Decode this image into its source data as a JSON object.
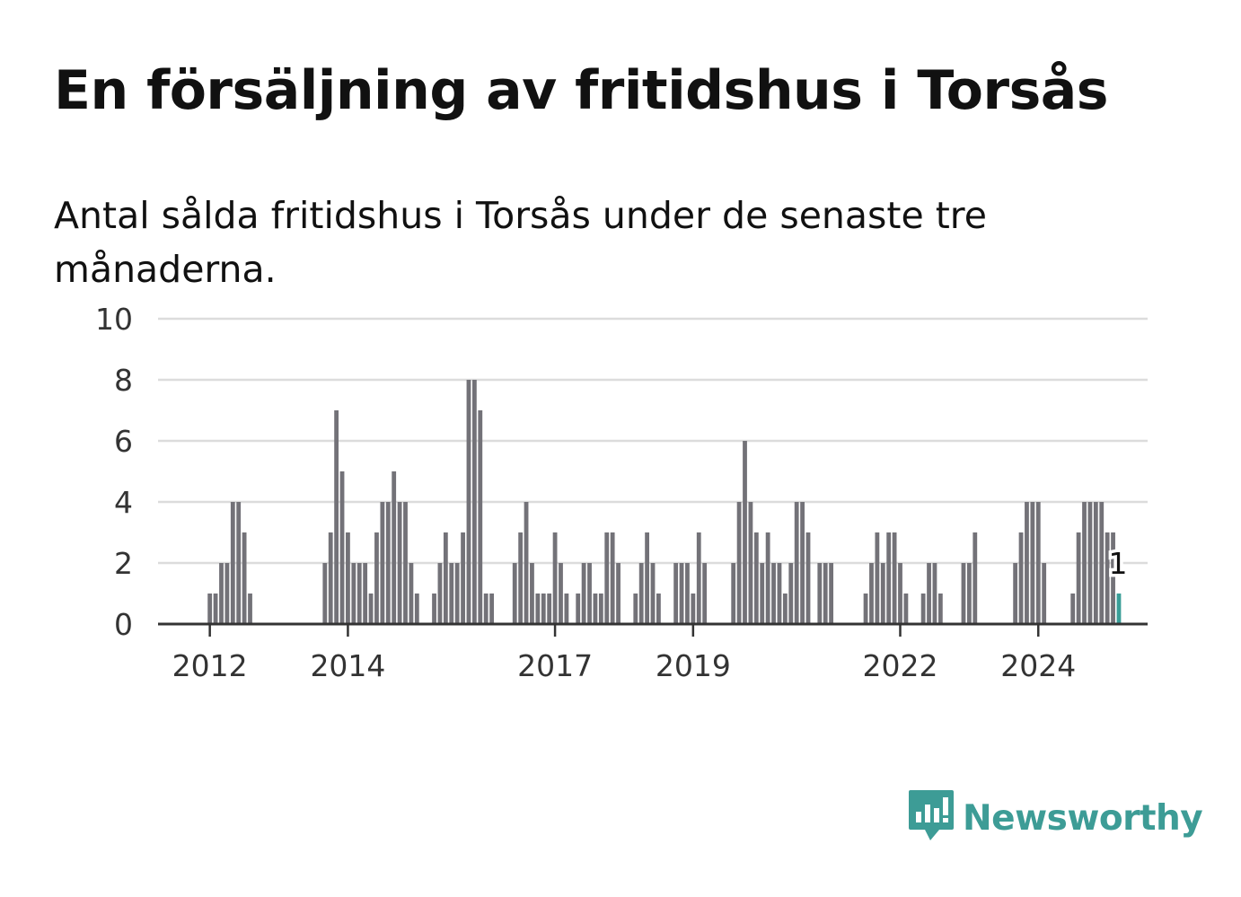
{
  "title": "En försäljning av fritidshus i Torsås",
  "subtitle": "Antal sålda fritidshus i Torsås under de senaste tre månaderna.",
  "brand": {
    "name": "Newsworthy",
    "color": "#3d9c96"
  },
  "colors": {
    "bar": "#737278",
    "highlight": "#3a9e98",
    "grid": "#dcdcdc",
    "axis": "#333333"
  },
  "chart_data": {
    "type": "bar",
    "title": "",
    "xlabel": "",
    "ylabel": "",
    "ylim": [
      0,
      10
    ],
    "yticks": [
      0,
      2,
      4,
      6,
      8,
      10
    ],
    "x_range": [
      "2011-04",
      "2025-08"
    ],
    "xtick_labels": [
      {
        "label": "2012",
        "date": "2012-01"
      },
      {
        "label": "2014",
        "date": "2014-01"
      },
      {
        "label": "2017",
        "date": "2017-01"
      },
      {
        "label": "2019",
        "date": "2019-01"
      },
      {
        "label": "2022",
        "date": "2022-01"
      },
      {
        "label": "2024",
        "date": "2024-01"
      }
    ],
    "highlight_label": "1",
    "series": [
      {
        "values": [
          {
            "date": "2012-01",
            "value": 1
          },
          {
            "date": "2012-02",
            "value": 1
          },
          {
            "date": "2012-03",
            "value": 2
          },
          {
            "date": "2012-04",
            "value": 2
          },
          {
            "date": "2012-05",
            "value": 4
          },
          {
            "date": "2012-06",
            "value": 4
          },
          {
            "date": "2012-07",
            "value": 3
          },
          {
            "date": "2012-08",
            "value": 1
          },
          {
            "date": "2013-09",
            "value": 2
          },
          {
            "date": "2013-10",
            "value": 3
          },
          {
            "date": "2013-11",
            "value": 7
          },
          {
            "date": "2013-12",
            "value": 5
          },
          {
            "date": "2014-01",
            "value": 3
          },
          {
            "date": "2014-02",
            "value": 2
          },
          {
            "date": "2014-03",
            "value": 2
          },
          {
            "date": "2014-04",
            "value": 2
          },
          {
            "date": "2014-05",
            "value": 1
          },
          {
            "date": "2014-06",
            "value": 3
          },
          {
            "date": "2014-07",
            "value": 4
          },
          {
            "date": "2014-08",
            "value": 4
          },
          {
            "date": "2014-09",
            "value": 5
          },
          {
            "date": "2014-10",
            "value": 4
          },
          {
            "date": "2014-11",
            "value": 4
          },
          {
            "date": "2014-12",
            "value": 2
          },
          {
            "date": "2015-01",
            "value": 1
          },
          {
            "date": "2015-04",
            "value": 1
          },
          {
            "date": "2015-05",
            "value": 2
          },
          {
            "date": "2015-06",
            "value": 3
          },
          {
            "date": "2015-07",
            "value": 2
          },
          {
            "date": "2015-08",
            "value": 2
          },
          {
            "date": "2015-09",
            "value": 3
          },
          {
            "date": "2015-10",
            "value": 8
          },
          {
            "date": "2015-11",
            "value": 8
          },
          {
            "date": "2015-12",
            "value": 7
          },
          {
            "date": "2016-01",
            "value": 1
          },
          {
            "date": "2016-02",
            "value": 1
          },
          {
            "date": "2016-06",
            "value": 2
          },
          {
            "date": "2016-07",
            "value": 3
          },
          {
            "date": "2016-08",
            "value": 4
          },
          {
            "date": "2016-09",
            "value": 2
          },
          {
            "date": "2016-10",
            "value": 1
          },
          {
            "date": "2016-11",
            "value": 1
          },
          {
            "date": "2016-12",
            "value": 1
          },
          {
            "date": "2017-01",
            "value": 3
          },
          {
            "date": "2017-02",
            "value": 2
          },
          {
            "date": "2017-03",
            "value": 1
          },
          {
            "date": "2017-05",
            "value": 1
          },
          {
            "date": "2017-06",
            "value": 2
          },
          {
            "date": "2017-07",
            "value": 2
          },
          {
            "date": "2017-08",
            "value": 1
          },
          {
            "date": "2017-09",
            "value": 1
          },
          {
            "date": "2017-10",
            "value": 3
          },
          {
            "date": "2017-11",
            "value": 3
          },
          {
            "date": "2017-12",
            "value": 2
          },
          {
            "date": "2018-03",
            "value": 1
          },
          {
            "date": "2018-04",
            "value": 2
          },
          {
            "date": "2018-05",
            "value": 3
          },
          {
            "date": "2018-06",
            "value": 2
          },
          {
            "date": "2018-07",
            "value": 1
          },
          {
            "date": "2018-10",
            "value": 2
          },
          {
            "date": "2018-11",
            "value": 2
          },
          {
            "date": "2018-12",
            "value": 2
          },
          {
            "date": "2019-01",
            "value": 1
          },
          {
            "date": "2019-02",
            "value": 3
          },
          {
            "date": "2019-03",
            "value": 2
          },
          {
            "date": "2019-08",
            "value": 2
          },
          {
            "date": "2019-09",
            "value": 4
          },
          {
            "date": "2019-10",
            "value": 6
          },
          {
            "date": "2019-11",
            "value": 4
          },
          {
            "date": "2019-12",
            "value": 3
          },
          {
            "date": "2020-01",
            "value": 2
          },
          {
            "date": "2020-02",
            "value": 3
          },
          {
            "date": "2020-03",
            "value": 2
          },
          {
            "date": "2020-04",
            "value": 2
          },
          {
            "date": "2020-05",
            "value": 1
          },
          {
            "date": "2020-06",
            "value": 2
          },
          {
            "date": "2020-07",
            "value": 4
          },
          {
            "date": "2020-08",
            "value": 4
          },
          {
            "date": "2020-09",
            "value": 3
          },
          {
            "date": "2020-11",
            "value": 2
          },
          {
            "date": "2020-12",
            "value": 2
          },
          {
            "date": "2021-01",
            "value": 2
          },
          {
            "date": "2021-07",
            "value": 1
          },
          {
            "date": "2021-08",
            "value": 2
          },
          {
            "date": "2021-09",
            "value": 3
          },
          {
            "date": "2021-10",
            "value": 2
          },
          {
            "date": "2021-11",
            "value": 3
          },
          {
            "date": "2021-12",
            "value": 3
          },
          {
            "date": "2022-01",
            "value": 2
          },
          {
            "date": "2022-02",
            "value": 1
          },
          {
            "date": "2022-05",
            "value": 1
          },
          {
            "date": "2022-06",
            "value": 2
          },
          {
            "date": "2022-07",
            "value": 2
          },
          {
            "date": "2022-08",
            "value": 1
          },
          {
            "date": "2022-12",
            "value": 2
          },
          {
            "date": "2023-01",
            "value": 2
          },
          {
            "date": "2023-02",
            "value": 3
          },
          {
            "date": "2023-09",
            "value": 2
          },
          {
            "date": "2023-10",
            "value": 3
          },
          {
            "date": "2023-11",
            "value": 4
          },
          {
            "date": "2023-12",
            "value": 4
          },
          {
            "date": "2024-01",
            "value": 4
          },
          {
            "date": "2024-02",
            "value": 2
          },
          {
            "date": "2024-07",
            "value": 1
          },
          {
            "date": "2024-08",
            "value": 3
          },
          {
            "date": "2024-09",
            "value": 4
          },
          {
            "date": "2024-10",
            "value": 4
          },
          {
            "date": "2024-11",
            "value": 4
          },
          {
            "date": "2024-12",
            "value": 4
          },
          {
            "date": "2025-01",
            "value": 3
          },
          {
            "date": "2025-02",
            "value": 3
          },
          {
            "date": "2025-03",
            "value": 1,
            "highlight": true
          }
        ]
      }
    ]
  }
}
